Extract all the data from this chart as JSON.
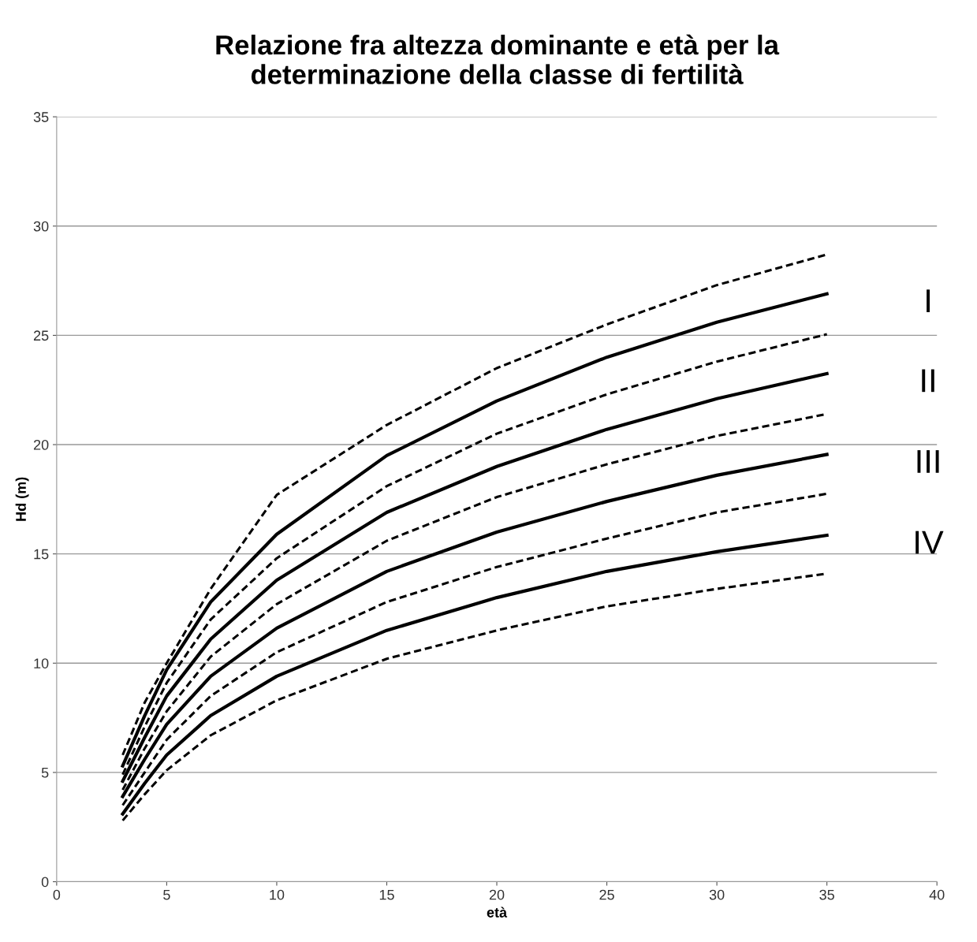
{
  "chart_data": {
    "type": "line",
    "title": "Relazione fra altezza dominante e età per la\ndeterminazione della classe di fertilità",
    "xlabel": "età",
    "ylabel": "Hd (m)",
    "x": [
      3,
      4,
      5,
      7,
      10,
      15,
      20,
      25,
      30,
      35
    ],
    "series": [
      {
        "color": "#000000",
        "line_style": "dashed",
        "values": [
          5.8,
          8.2,
          10.0,
          13.4,
          17.7,
          20.9,
          23.5,
          25.5,
          27.3,
          28.7
        ]
      },
      {
        "name": "I",
        "color": "#000000",
        "line_style": "solid",
        "values": [
          5.3,
          7.6,
          9.7,
          12.8,
          15.9,
          19.5,
          22.0,
          24.0,
          25.6,
          26.9
        ]
      },
      {
        "color": "#000000",
        "line_style": "dashed",
        "values": [
          4.9,
          7.1,
          9.1,
          12.0,
          14.8,
          18.1,
          20.5,
          22.3,
          23.8,
          25.05
        ]
      },
      {
        "name": "II",
        "color": "#000000",
        "line_style": "solid",
        "values": [
          4.6,
          6.6,
          8.5,
          11.1,
          13.8,
          16.9,
          19.0,
          20.7,
          22.1,
          23.25
        ]
      },
      {
        "color": "#000000",
        "line_style": "dashed",
        "values": [
          4.2,
          6.1,
          7.8,
          10.3,
          12.7,
          15.6,
          17.6,
          19.1,
          20.4,
          21.4
        ]
      },
      {
        "name": "III",
        "color": "#000000",
        "line_style": "solid",
        "values": [
          3.9,
          5.6,
          7.2,
          9.4,
          11.6,
          14.2,
          16.0,
          17.4,
          18.6,
          19.55
        ]
      },
      {
        "color": "#000000",
        "line_style": "dashed",
        "values": [
          3.5,
          5.0,
          6.5,
          8.5,
          10.5,
          12.8,
          14.4,
          15.7,
          16.9,
          17.75
        ]
      },
      {
        "name": "IV",
        "color": "#000000",
        "line_style": "solid",
        "values": [
          3.1,
          4.5,
          5.8,
          7.6,
          9.4,
          11.5,
          13.0,
          14.2,
          15.1,
          15.85
        ]
      },
      {
        "color": "#000000",
        "line_style": "dashed",
        "values": [
          2.8,
          4.0,
          5.1,
          6.7,
          8.3,
          10.2,
          11.5,
          12.6,
          13.4,
          14.1
        ]
      }
    ],
    "xlim": [
      0,
      40
    ],
    "xticks": [
      0,
      5,
      10,
      15,
      20,
      25,
      30,
      35,
      40
    ],
    "ylim": [
      0,
      35
    ],
    "yticks": [
      0,
      5,
      10,
      15,
      20,
      25,
      30,
      35
    ],
    "grid": "y",
    "legend": false,
    "marker": "none"
  }
}
